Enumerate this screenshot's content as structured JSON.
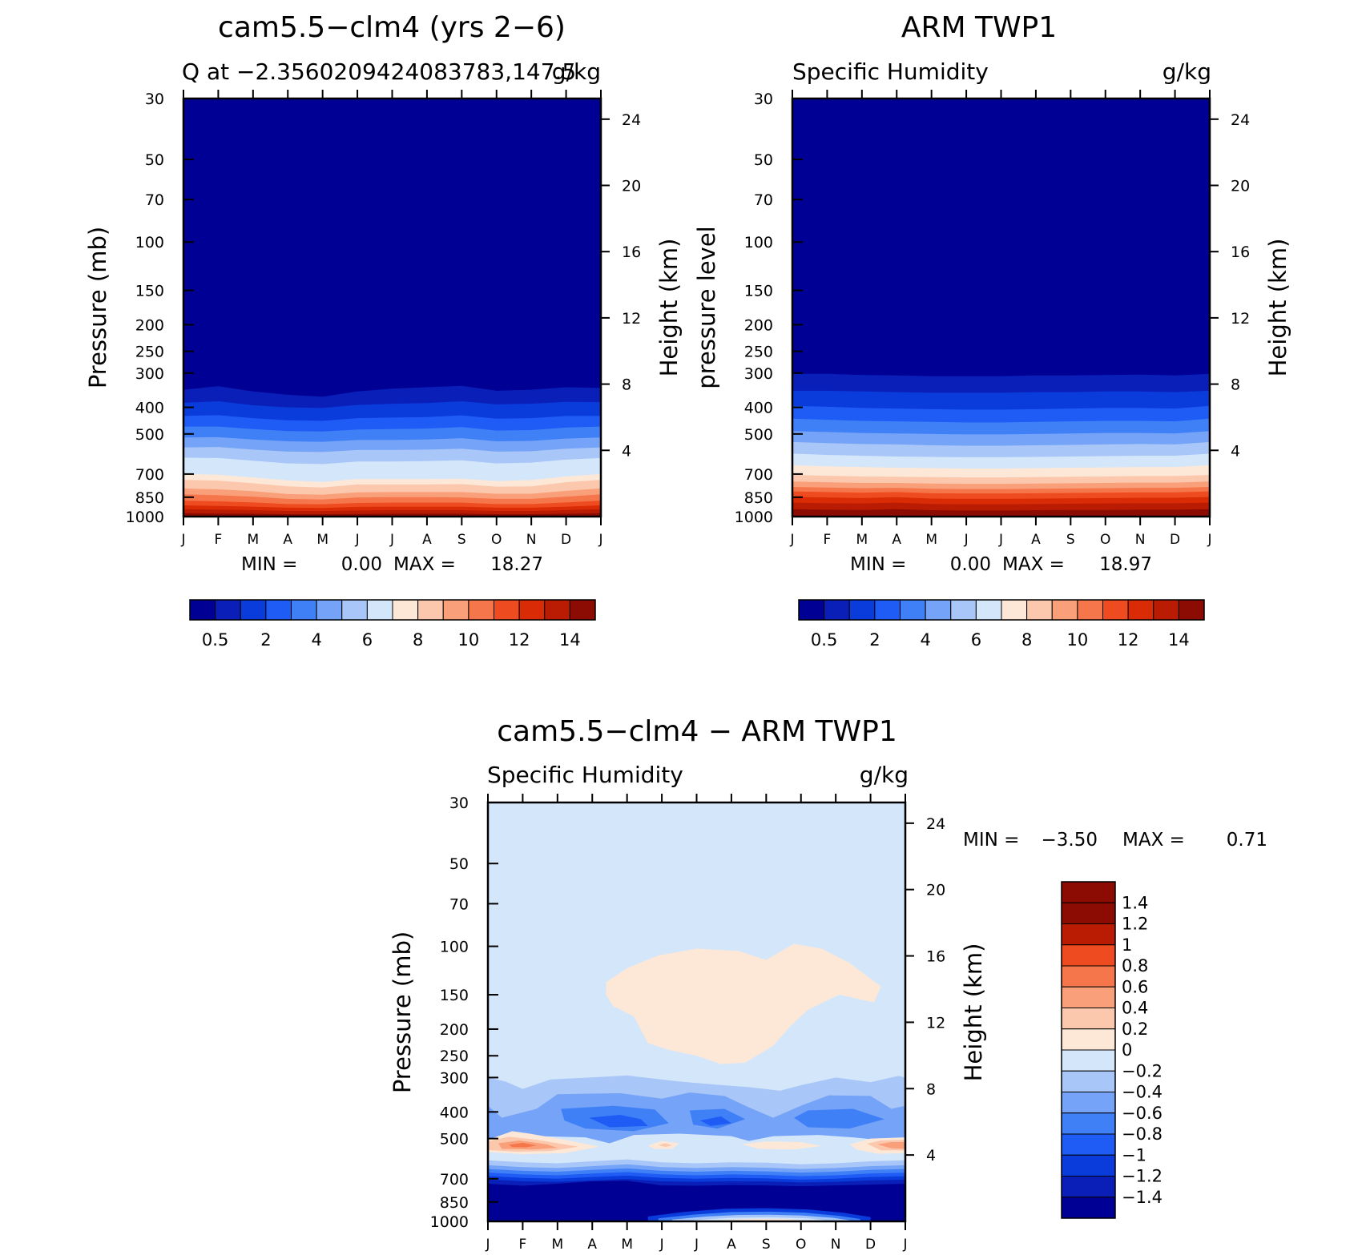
{
  "chart_data": [
    {
      "type": "contour",
      "title": "cam5.5−clm4 (yrs 2−6)",
      "subtitle_left": "Q at −2.3560209424083783,147.5",
      "subtitle_right": "g/kg",
      "ylabel_left": "Pressure (mb)",
      "ylabel_right": "Height (km)",
      "x_ticks": [
        "J",
        "F",
        "M",
        "A",
        "M",
        "J",
        "J",
        "A",
        "S",
        "O",
        "N",
        "D",
        "J"
      ],
      "y_ticks_pressure": [
        "30",
        "50",
        "70",
        "100",
        "150",
        "200",
        "250",
        "300",
        "400",
        "500",
        "700",
        "850",
        "1000"
      ],
      "y_ticks_height": [
        "24",
        "20",
        "16",
        "12",
        "8",
        "4"
      ],
      "stats": {
        "min_label": "MIN =",
        "min": "0.00",
        "max_label": "MAX =",
        "max": "18.27"
      },
      "colorbar": {
        "labels": [
          "0.5",
          "2",
          "4",
          "6",
          "8",
          "10",
          "12",
          "14"
        ],
        "levels": [
          0.5,
          1,
          2,
          3,
          4,
          5,
          6,
          7,
          8,
          9,
          10,
          11,
          12,
          13,
          14
        ]
      },
      "profile_levels_hpa": [
        1000,
        850,
        700,
        500,
        400,
        300,
        250,
        200,
        150,
        100
      ],
      "profile_values_gkg_annual_mean": [
        18.3,
        12.5,
        8.0,
        4.5,
        2.3,
        0.6,
        0.2,
        0.05,
        0.0,
        0.0
      ]
    },
    {
      "type": "contour",
      "title": "ARM TWP1",
      "subtitle_left": "Specific Humidity",
      "subtitle_right": "g/kg",
      "ylabel_left": "pressure level",
      "ylabel_right": "Height (km)",
      "x_ticks": [
        "J",
        "F",
        "M",
        "A",
        "M",
        "J",
        "J",
        "A",
        "S",
        "O",
        "N",
        "D",
        "J"
      ],
      "y_ticks_pressure": [
        "30",
        "50",
        "70",
        "100",
        "150",
        "200",
        "250",
        "300",
        "400",
        "500",
        "700",
        "850",
        "1000"
      ],
      "y_ticks_height": [
        "24",
        "20",
        "16",
        "12",
        "8",
        "4"
      ],
      "stats": {
        "min_label": "MIN =",
        "min": "0.00",
        "max_label": "MAX =",
        "max": "18.97"
      },
      "colorbar": {
        "labels": [
          "0.5",
          "2",
          "4",
          "6",
          "8",
          "10",
          "12",
          "14"
        ],
        "levels": [
          0.5,
          1,
          2,
          3,
          4,
          5,
          6,
          7,
          8,
          9,
          10,
          11,
          12,
          13,
          14
        ]
      },
      "profile_levels_hpa": [
        1000,
        850,
        700,
        500,
        400,
        300,
        250,
        200,
        150,
        100
      ],
      "profile_values_gkg_annual_mean": [
        19.0,
        13.5,
        9.5,
        5.0,
        2.6,
        0.8,
        0.3,
        0.05,
        0.0,
        0.0
      ]
    },
    {
      "type": "contour",
      "title": "cam5.5−clm4 − ARM TWP1",
      "subtitle_left": "Specific Humidity",
      "subtitle_right": "g/kg",
      "ylabel_left": "Pressure (mb)",
      "ylabel_right": "Height (km)",
      "x_ticks": [
        "J",
        "F",
        "M",
        "A",
        "M",
        "J",
        "J",
        "A",
        "S",
        "O",
        "N",
        "D",
        "J"
      ],
      "y_ticks_pressure": [
        "30",
        "50",
        "70",
        "100",
        "150",
        "200",
        "250",
        "300",
        "400",
        "500",
        "700",
        "850",
        "1000"
      ],
      "y_ticks_height": [
        "24",
        "20",
        "16",
        "12",
        "8",
        "4"
      ],
      "stats": {
        "min_label": "MIN =",
        "min": "−3.50",
        "max_label": "MAX =",
        "max": "0.71"
      },
      "colorbar": {
        "labels": [
          "1.4",
          "1.2",
          "1",
          "0.8",
          "0.6",
          "0.4",
          "0.2",
          "0",
          "−0.2",
          "−0.4",
          "−0.6",
          "−0.8",
          "−1",
          "−1.2",
          "−1.4"
        ],
        "levels": [
          1.4,
          1.2,
          1,
          0.8,
          0.6,
          0.4,
          0.2,
          0,
          -0.2,
          -0.4,
          -0.6,
          -0.8,
          -1,
          -1.2,
          -1.4
        ]
      },
      "difference_features": [
        {
          "region": "upper troposphere 100–300 hb, Apr–Nov",
          "value": "0 to 0.2"
        },
        {
          "region": "~500 hPa, Jan–Feb and Dec",
          "value": "0.4 to 0.71"
        },
        {
          "region": "~700–950 hPa all months",
          "value": "below −1.4 (min −3.50)"
        }
      ]
    }
  ],
  "colors": {
    "q_palette": [
      "#000094",
      "#0a1fb8",
      "#0a3bdb",
      "#1f5cf5",
      "#4080f7",
      "#75a3f7",
      "#a8c6f7",
      "#d3e6fa",
      "#fde8d8",
      "#fcc8ad",
      "#f9a07a",
      "#f5764a",
      "#ee4c20",
      "#d92b06",
      "#b91c03",
      "#8c0c03"
    ],
    "diff_palette": [
      "#8c0c03",
      "#b91c03",
      "#ee4c20",
      "#f5764a",
      "#f9a07a",
      "#fcc8ad",
      "#fde8d8",
      "#d3e6fa",
      "#a8c6f7",
      "#75a3f7",
      "#4080f7",
      "#1f5cf5",
      "#0a3bdb",
      "#0a1fb8",
      "#000094"
    ]
  }
}
